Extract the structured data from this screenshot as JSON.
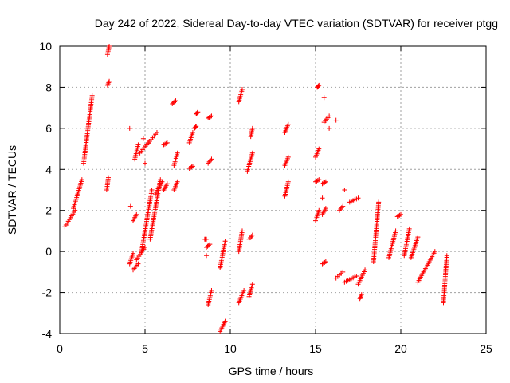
{
  "chart_data": {
    "type": "scatter",
    "title": "Day 242 of 2022, Sidereal Day-to-day VTEC variation (SDTVAR) for receiver ptgg",
    "xlabel": "GPS time / hours",
    "ylabel": "SDTVAR / TECUs",
    "xlim": [
      0,
      25
    ],
    "ylim": [
      -4,
      10
    ],
    "xticks": [
      0,
      5,
      10,
      15,
      20,
      25
    ],
    "yticks": [
      -4,
      -2,
      0,
      2,
      4,
      6,
      8,
      10
    ],
    "grid": true,
    "marker": "+",
    "color": "#ff0000",
    "series": [
      {
        "name": "SDTVAR",
        "segments": [
          [
            0.3,
            0.9,
            1.2,
            2.0
          ],
          [
            0.8,
            1.3,
            2.1,
            3.5
          ],
          [
            1.4,
            1.9,
            4.3,
            7.6
          ],
          [
            2.8,
            2.9,
            9.6,
            10.0
          ],
          [
            2.8,
            2.9,
            8.1,
            8.3
          ],
          [
            2.75,
            2.85,
            3.0,
            3.6
          ],
          [
            4.1,
            4.3,
            -0.6,
            -0.1
          ],
          [
            4.3,
            4.6,
            -0.9,
            -0.6
          ],
          [
            4.3,
            4.5,
            1.5,
            1.8
          ],
          [
            4.4,
            4.6,
            4.5,
            5.2
          ],
          [
            4.5,
            5.0,
            -0.4,
            0.2
          ],
          [
            4.7,
            5.2,
            4.8,
            5.3
          ],
          [
            4.8,
            5.4,
            0.0,
            3.0
          ],
          [
            5.1,
            5.7,
            5.2,
            5.8
          ],
          [
            5.3,
            5.9,
            0.6,
            3.5
          ],
          [
            5.6,
            6.0,
            2.8,
            3.4
          ],
          [
            6.1,
            6.3,
            3.0,
            3.3
          ],
          [
            6.1,
            6.3,
            5.2,
            5.3
          ],
          [
            6.6,
            6.8,
            7.2,
            7.35
          ],
          [
            6.7,
            6.9,
            4.2,
            4.8
          ],
          [
            6.7,
            6.9,
            3.0,
            3.4
          ],
          [
            7.6,
            7.8,
            4.05,
            4.15
          ],
          [
            7.6,
            7.8,
            5.3,
            5.8
          ],
          [
            7.9,
            8.0,
            6.0,
            6.1
          ],
          [
            8.0,
            8.1,
            6.7,
            6.8
          ],
          [
            8.5,
            8.6,
            0.6,
            0.6
          ],
          [
            8.6,
            8.8,
            0.2,
            0.35
          ],
          [
            8.7,
            8.9,
            4.3,
            4.5
          ],
          [
            8.7,
            8.9,
            6.5,
            6.6
          ],
          [
            8.7,
            8.9,
            -2.6,
            -1.9
          ],
          [
            9.4,
            9.7,
            -0.8,
            0.5
          ],
          [
            9.4,
            9.7,
            -3.9,
            -3.4
          ],
          [
            10.5,
            10.8,
            -2.5,
            -1.9
          ],
          [
            10.5,
            10.7,
            0.0,
            1.0
          ],
          [
            10.5,
            10.7,
            7.3,
            7.9
          ],
          [
            11.0,
            11.3,
            3.9,
            4.8
          ],
          [
            11.1,
            11.3,
            -2.2,
            -1.6
          ],
          [
            11.1,
            11.3,
            0.6,
            0.8
          ],
          [
            11.2,
            11.3,
            5.6,
            6.0
          ],
          [
            13.2,
            13.4,
            2.7,
            3.4
          ],
          [
            13.2,
            13.4,
            4.2,
            4.6
          ],
          [
            13.2,
            13.4,
            5.8,
            6.2
          ],
          [
            15.0,
            15.2,
            1.5,
            2.0
          ],
          [
            15.0,
            15.2,
            3.4,
            3.5
          ],
          [
            15.0,
            15.2,
            4.6,
            5.0
          ],
          [
            15.1,
            15.2,
            8.0,
            8.1
          ],
          [
            15.4,
            15.6,
            -0.6,
            -0.5
          ],
          [
            15.4,
            15.6,
            1.8,
            2.1
          ],
          [
            15.4,
            15.6,
            3.3,
            3.4
          ],
          [
            15.5,
            15.8,
            6.3,
            6.6
          ],
          [
            16.2,
            16.6,
            -1.3,
            -1.0
          ],
          [
            16.4,
            16.6,
            2.0,
            2.2
          ],
          [
            16.7,
            17.4,
            -1.5,
            -1.2
          ],
          [
            17.0,
            17.5,
            2.4,
            2.6
          ],
          [
            17.5,
            17.9,
            -1.6,
            -0.9
          ],
          [
            17.6,
            17.7,
            -2.3,
            -2.1
          ],
          [
            18.4,
            18.7,
            -0.5,
            2.4
          ],
          [
            19.3,
            19.7,
            -0.3,
            1.0
          ],
          [
            19.8,
            20.0,
            1.7,
            1.8
          ],
          [
            20.2,
            20.5,
            -0.2,
            1.1
          ],
          [
            20.6,
            21.0,
            -0.3,
            0.7
          ],
          [
            21.0,
            22.0,
            -1.5,
            0.0
          ],
          [
            22.5,
            22.7,
            -2.5,
            -0.2
          ]
        ],
        "scattered": [
          [
            4.1,
            6.0
          ],
          [
            4.15,
            2.2
          ],
          [
            15.5,
            7.5
          ],
          [
            15.8,
            6.0
          ],
          [
            16.2,
            6.4
          ],
          [
            16.7,
            3.0
          ],
          [
            8.6,
            -0.2
          ],
          [
            15.4,
            2.6
          ],
          [
            5.0,
            4.3
          ],
          [
            4.9,
            5.5
          ]
        ]
      }
    ]
  }
}
